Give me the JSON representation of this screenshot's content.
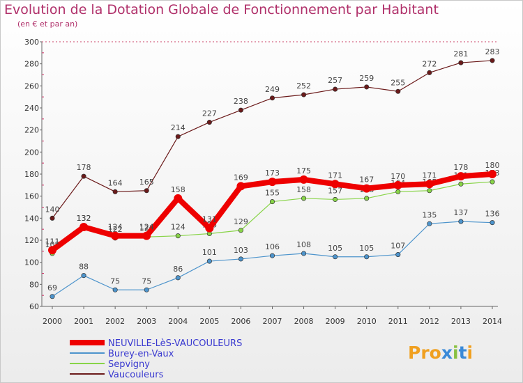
{
  "chart_data": {
    "type": "line",
    "title": "Evolution de la Dotation Globale de Fonctionnement par Habitant",
    "subtitle": "(en € et par an)",
    "xlabel": "",
    "ylabel": "",
    "ylim": [
      60,
      300
    ],
    "yticks": [
      60,
      80,
      100,
      120,
      140,
      160,
      180,
      200,
      220,
      240,
      260,
      280,
      300
    ],
    "categories": [
      "2000",
      "2001",
      "2002",
      "2003",
      "2004",
      "2005",
      "2006",
      "2007",
      "2008",
      "2009",
      "2010",
      "2011",
      "2012",
      "2013",
      "2014"
    ],
    "series": [
      {
        "name": "Vaucouleurs",
        "color": "#6b1a1a",
        "values": [
          140,
          178,
          164,
          165,
          214,
          227,
          238,
          249,
          252,
          257,
          259,
          255,
          272,
          281,
          283
        ],
        "labels": [
          "140",
          "178",
          "164",
          "165",
          "214",
          "227",
          "238",
          "249",
          "252",
          "257",
          "259",
          "255",
          "272",
          "281",
          "283"
        ]
      },
      {
        "name": "Sepvigny",
        "color": "#88d448",
        "values": [
          108,
          132,
          122,
          123,
          124,
          126,
          129,
          155,
          158,
          157,
          158,
          164,
          165,
          171,
          173
        ],
        "labels": [
          "108",
          "132",
          "122",
          "123",
          "124",
          "126",
          "129",
          "155",
          "158",
          "157",
          "158",
          "164",
          "165",
          "171",
          "173"
        ]
      },
      {
        "name": "Burey-en-Vaux",
        "color": "#4d94cc",
        "values": [
          69,
          88,
          75,
          75,
          86,
          101,
          103,
          106,
          108,
          105,
          105,
          107,
          135,
          137,
          136
        ],
        "labels": [
          "69",
          "88",
          "75",
          "75",
          "86",
          "101",
          "103",
          "106",
          "108",
          "105",
          "105",
          "107",
          "135",
          "137",
          "136"
        ]
      },
      {
        "name": "NEUVILLE-LèS-VAUCOULEURS",
        "color": "#ee0000",
        "values": [
          111,
          132,
          124,
          124,
          158,
          131,
          169,
          173,
          175,
          171,
          167,
          170,
          171,
          178,
          180
        ],
        "labels": [
          "111",
          "132",
          "124",
          "124",
          "158",
          "131",
          "169",
          "173",
          "175",
          "171",
          "167",
          "170",
          "171",
          "178",
          "180"
        ]
      }
    ],
    "legend": [
      "NEUVILLE-LèS-VAUCOULEURS",
      "Burey-en-Vaux",
      "Sepvigny",
      "Vaucouleurs"
    ],
    "grid": false,
    "legend_position": "bottom-left"
  },
  "logo": {
    "text": "Proxiti"
  }
}
